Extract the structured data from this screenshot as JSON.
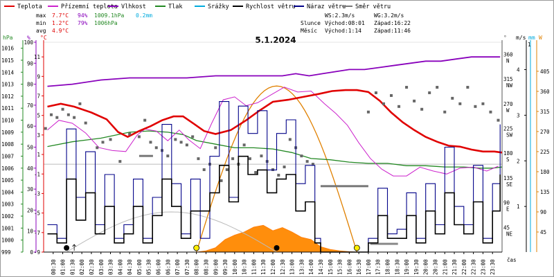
{
  "chart_data": {
    "type": "line",
    "title": "5.1.2024",
    "legend": [
      {
        "name": "Teplota",
        "color": "#e00000"
      },
      {
        "name": "Přízemní teplota",
        "color": "#cc22cc"
      },
      {
        "name": "Vlhkost",
        "color": "#8800bb"
      },
      {
        "name": "Tlak",
        "color": "#228822"
      },
      {
        "name": "Srážky",
        "color": "#00aadd"
      },
      {
        "name": "Rychlost větru",
        "color": "#000000"
      },
      {
        "name": "Náraz větru",
        "color": "#000088"
      },
      {
        "name": "Směr větru",
        "color": "#777777"
      }
    ],
    "stats": {
      "rows": [
        {
          "label": "max",
          "temp": "7.7°C",
          "hum": "94%",
          "press": "1009.1hPa",
          "rain": "0.2mm"
        },
        {
          "label": "min",
          "temp": "1.2°C",
          "hum": "79%",
          "press": "1006hPa"
        },
        {
          "label": "avg",
          "temp": "4.9°C"
        }
      ],
      "wind": {
        "ws": "WS:2.3m/s",
        "wg": "WG:3.2m/s"
      },
      "sun": {
        "label": "Slunce",
        "rise": "Východ:08:01",
        "set": "Západ:16:22"
      },
      "moon": {
        "label": "Měsíc",
        "rise": "Východ:1:14",
        "set": "Západ:11:46"
      }
    },
    "axis_titles": {
      "hpa": "hPa",
      "pct": "%",
      "degc": "°C",
      "deg": "°",
      "ms": "m/s",
      "mm": "mm",
      "w": "W",
      "x": "čas"
    },
    "axes": {
      "hpa": [
        "1016",
        "1015",
        "1014",
        "1013",
        "1012",
        "1011",
        "1010",
        "1009",
        "1008",
        "1007",
        "1006",
        "1005",
        "1004",
        "1003",
        "1002",
        "1001",
        "1000",
        "999"
      ],
      "pct": [
        "100",
        "90",
        "80",
        "70",
        "60",
        "50",
        "40",
        "30",
        "20",
        "10",
        "0"
      ],
      "temp": [
        "11",
        "9",
        "7",
        "5",
        "3",
        "1",
        "-1",
        "-3",
        "-5",
        "-7",
        "-9"
      ],
      "dir": [
        "360\nN",
        "315\nNW",
        "270\nW",
        "225\nSW",
        "180\nS",
        "135\nSE",
        "90\nE",
        "45\nNE"
      ],
      "dir_values": [
        360,
        315,
        270,
        225,
        180,
        135,
        90,
        45
      ],
      "ms": [
        "4",
        "3",
        "2",
        "1"
      ],
      "ms_values": [
        4,
        3,
        2,
        1
      ],
      "mm": [
        "1"
      ],
      "w": [
        "405",
        "360",
        "315",
        "270",
        "225",
        "180",
        "135",
        "90",
        "45"
      ],
      "w_values": [
        405,
        360,
        315,
        270,
        225,
        180,
        135,
        90,
        45
      ]
    },
    "x_ticks": [
      "00:30",
      "01:00",
      "01:30",
      "02:00",
      "02:30",
      "03:00",
      "03:30",
      "04:00",
      "04:30",
      "05:00",
      "05:30",
      "06:00",
      "06:30",
      "07:00",
      "07:30",
      "08:00",
      "08:30",
      "09:00",
      "09:30",
      "10:00",
      "10:30",
      "11:00",
      "11:30",
      "12:00",
      "12:30",
      "13:00",
      "13:30",
      "14:00",
      "14:30",
      "15:00",
      "15:30",
      "16:00",
      "16:30",
      "17:00",
      "17:30",
      "18:00",
      "18:30",
      "19:00",
      "19:30",
      "20:00",
      "20:30",
      "21:00",
      "21:30",
      "22:00",
      "22:30",
      "23:00",
      "23:30"
    ],
    "x_range_hours": [
      0,
      24
    ],
    "ranges": {
      "temp_c": [
        -9,
        12.5
      ],
      "humidity_pct": [
        0,
        100
      ],
      "pressure_hpa": [
        999,
        1016.5
      ],
      "wind_ms": [
        0,
        4.6
      ],
      "direction_deg": [
        0,
        382
      ],
      "radiation_w": [
        0,
        470
      ]
    },
    "series": [
      {
        "name": "Teplota",
        "x": [
          0.2,
          0.9,
          1.6,
          2.5,
          3.3,
          3.9,
          4.4,
          5,
          5.6,
          6.2,
          6.8,
          7.3,
          7.9,
          8.4,
          9,
          9.8,
          10.6,
          11.3,
          12,
          12.8,
          13.6,
          14.4,
          15.1,
          15.8,
          16.4,
          17,
          17.6,
          18.2,
          18.8,
          19.4,
          20,
          20.6,
          21.2,
          21.8,
          22.4,
          23,
          23.6,
          24
        ],
        "values": [
          5.9,
          6.2,
          5.9,
          5.3,
          4.6,
          3.3,
          2.8,
          3.4,
          3.9,
          4.5,
          4.9,
          4.9,
          4.1,
          3.4,
          3.1,
          3.5,
          4.5,
          5.5,
          6.4,
          6.6,
          6.9,
          7.2,
          7.5,
          7.6,
          7.6,
          7.4,
          6.5,
          5.3,
          4.3,
          3.5,
          2.8,
          2.3,
          1.9,
          1.8,
          1.5,
          1.3,
          1.3,
          1.2
        ]
      },
      {
        "name": "Přízemní teplota",
        "x": [
          0.2,
          0.8,
          1.5,
          2.2,
          2.9,
          3.6,
          4.3,
          4.9,
          5.3,
          5.9,
          6.5,
          7.1,
          7.6,
          8.2,
          8.8,
          9.4,
          10,
          10.6,
          11.2,
          11.9,
          12.6,
          13.3,
          14,
          14.7,
          15.3,
          15.9,
          16.5,
          17.1,
          17.7,
          18.3,
          19,
          19.7,
          20.4,
          21.1,
          21.8,
          22.5,
          23.2,
          23.8
        ],
        "values": [
          3.5,
          4.5,
          4.2,
          3.2,
          1.7,
          1.4,
          1.3,
          3,
          3.6,
          3.4,
          2.4,
          3.5,
          2.5,
          1.6,
          4.2,
          6.6,
          6.9,
          6,
          6.3,
          7.1,
          7.9,
          7.4,
          7.5,
          6.2,
          5.2,
          4,
          2.2,
          0.6,
          -0.5,
          -1.2,
          -1.2,
          -0.3,
          -0.7,
          -1,
          -0.4,
          -0.3,
          -0.7,
          -0.2
        ]
      },
      {
        "name": "Vlhkost",
        "x": [
          0.2,
          1.5,
          3,
          4.5,
          6,
          7.5,
          9,
          10.5,
          11.8,
          12.5,
          13.2,
          13.9,
          14.6,
          15.3,
          16,
          16.8,
          17.6,
          18.4,
          19.2,
          20,
          20.8,
          21.6,
          22.4,
          23.2,
          23.9
        ],
        "values": [
          79,
          80,
          82,
          83,
          83,
          83,
          84,
          84,
          84,
          84,
          85,
          84,
          85,
          86,
          87,
          87,
          88,
          89,
          90,
          91,
          91,
          92,
          93,
          93,
          93
        ]
      },
      {
        "name": "Tlak",
        "x": [
          0.2,
          1.5,
          3,
          4.5,
          5.5,
          6.5,
          7.3,
          8,
          9,
          10,
          11,
          12,
          13,
          14,
          15,
          16,
          17,
          18,
          19,
          20,
          21,
          22,
          22.8,
          23.5,
          24
        ],
        "values": [
          1007.8,
          1008.2,
          1008.5,
          1009.0,
          1009.1,
          1009.0,
          1008.8,
          1008.3,
          1008.0,
          1007.7,
          1007.7,
          1007.6,
          1007.3,
          1006.8,
          1006.7,
          1006.5,
          1006.4,
          1006.4,
          1006.2,
          1006.2,
          1006.1,
          1006.1,
          1006.0,
          1006.0,
          1006.1
        ]
      },
      {
        "name": "Náraz větru",
        "x": [
          0.2,
          0.7,
          1.2,
          1.7,
          2.2,
          2.7,
          3.2,
          3.7,
          4.2,
          4.7,
          5.2,
          5.7,
          6.2,
          6.7,
          7.2,
          7.7,
          8.2,
          8.7,
          9.2,
          9.7,
          10.2,
          10.7,
          11.2,
          11.7,
          12.2,
          12.7,
          13.2,
          13.7,
          14.2,
          14.5,
          17,
          17.5,
          18,
          18.5,
          19,
          19.5,
          20,
          20.5,
          21,
          21.5,
          22,
          22.5,
          23,
          23.5,
          23.9
        ],
        "values": [
          0.6,
          0.3,
          2.7,
          1.2,
          2.2,
          0.6,
          1.7,
          0.3,
          0.6,
          1.6,
          0.3,
          1.2,
          2.8,
          1.5,
          0.4,
          1.6,
          0.3,
          2.1,
          3.3,
          1.2,
          3.2,
          2.6,
          3.1,
          1.8,
          2.6,
          2.9,
          1.5,
          1.9,
          0.3,
          0.0,
          0.3,
          1.4,
          0.4,
          0.5,
          1.3,
          0.3,
          1.5,
          0.6,
          2.3,
          1.0,
          0.6,
          1.9,
          0.3,
          1.5,
          2.8
        ]
      },
      {
        "name": "Rychlost větru",
        "x": [
          0.2,
          0.7,
          1.2,
          1.7,
          2.2,
          2.7,
          3.2,
          3.7,
          4.2,
          4.7,
          5.2,
          5.7,
          6.2,
          6.7,
          7.2,
          7.7,
          8.2,
          8.7,
          9.2,
          9.7,
          10.2,
          10.7,
          11.2,
          11.7,
          12.2,
          12.7,
          13.2,
          13.7,
          14.2,
          14.5,
          17,
          17.5,
          18,
          18.5,
          19,
          19.5,
          20,
          20.5,
          21,
          21.5,
          22,
          22.5,
          23,
          23.5,
          23.9
        ],
        "values": [
          0.4,
          0.2,
          1.6,
          0.7,
          1.3,
          0.4,
          1.0,
          0.2,
          0.4,
          1.0,
          0.2,
          0.8,
          1.6,
          1.0,
          0.3,
          0.9,
          0.9,
          1.3,
          1.9,
          1.1,
          2.1,
          1.7,
          1.8,
          1.3,
          1.6,
          1.7,
          0.9,
          1.1,
          0.2,
          0.0,
          0.2,
          0.8,
          0.3,
          0.3,
          0.8,
          0.2,
          0.9,
          0.4,
          1.3,
          0.6,
          0.4,
          1.1,
          0.2,
          0.9,
          1.7
        ]
      },
      {
        "name": "Směr větru",
        "x": [
          0.1,
          0.4,
          0.7,
          1.0,
          1.3,
          1.6,
          1.9,
          2.2,
          2.8,
          3.1,
          3.5,
          4.0,
          4.5,
          5.0,
          5.3,
          5.6,
          5.9,
          6.2,
          6.5,
          6.9,
          7.2,
          7.5,
          7.8,
          8.1,
          8.4,
          8.7,
          9.0,
          9.3,
          9.6,
          9.9,
          10.2,
          10.5,
          10.8,
          11.1,
          11.4,
          11.7,
          12.0,
          12.3,
          12.6,
          12.9,
          13.2,
          13.5,
          13.8,
          14.1,
          17.0,
          17.4,
          17.8,
          18.2,
          18.6,
          19.0,
          19.4,
          19.8,
          20.2,
          20.6,
          21.0,
          21.4,
          21.8,
          22.2,
          22.6,
          23.0,
          23.4,
          23.8
        ],
        "values": [
          225,
          250,
          245,
          260,
          250,
          245,
          270,
          235,
          190,
          200,
          205,
          165,
          215,
          210,
          240,
          200,
          190,
          185,
          175,
          205,
          200,
          195,
          210,
          170,
          150,
          160,
          190,
          130,
          150,
          170,
          160,
          195,
          170,
          145,
          175,
          165,
          150,
          140,
          155,
          205,
          190,
          175,
          165,
          160,
          255,
          290,
          270,
          285,
          265,
          300,
          275,
          260,
          290,
          300,
          255,
          280,
          270,
          300,
          265,
          270,
          255,
          240
        ]
      },
      {
        "name": "Záření",
        "x": [
          8.0,
          8.5,
          9.0,
          9.5,
          10.0,
          10.5,
          11.0,
          11.5,
          12.0,
          12.5,
          13.0,
          13.5,
          14.0,
          14.5,
          15.0,
          15.5,
          16.0,
          16.4
        ],
        "values": [
          0,
          3,
          10,
          28,
          38,
          45,
          56,
          60,
          48,
          55,
          45,
          33,
          28,
          12,
          6,
          3,
          1,
          0
        ]
      },
      {
        "name": "Sun",
        "x": [
          8.0,
          9,
          10,
          11,
          12,
          13,
          14,
          15,
          16,
          16.4
        ],
        "values": [
          0,
          150,
          270,
          345,
          372,
          350,
          270,
          150,
          30,
          0
        ]
      }
    ],
    "annotations": {
      "sun_markers_h": [
        8.0,
        16.4
      ],
      "moon_markers_h": [
        1.2,
        12.2
      ],
      "moon_arc_h": [
        1.2,
        12.2
      ],
      "rain_arrow_h": [
        1.6
      ]
    }
  }
}
